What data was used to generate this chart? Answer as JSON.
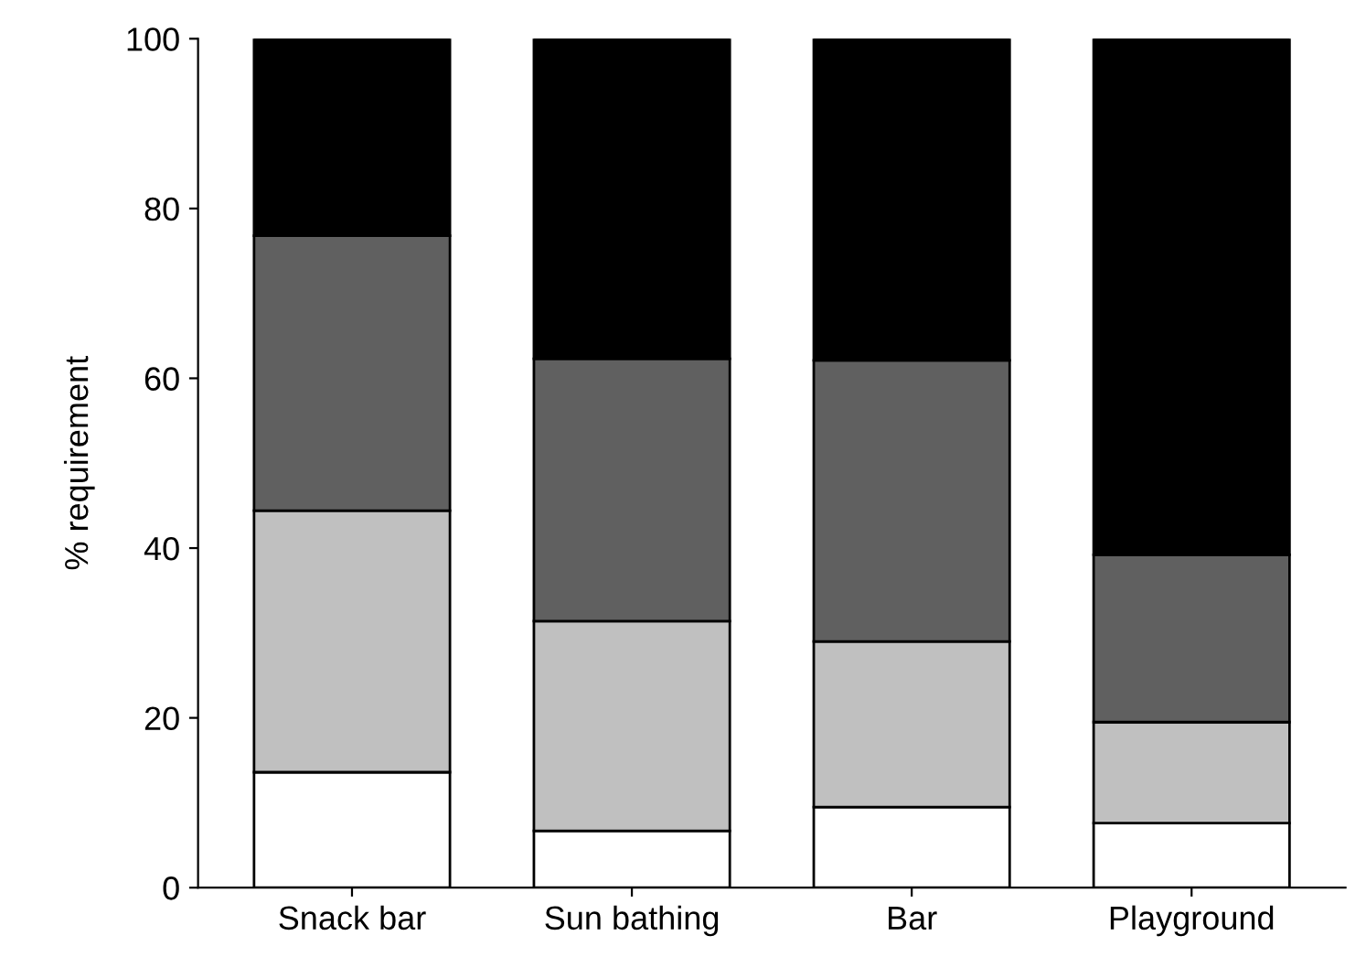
{
  "chart_data": {
    "type": "bar",
    "stacked": true,
    "ylabel": "% requirement",
    "categories": [
      "Snack bar",
      "Sun bathing",
      "Bar",
      "Playground"
    ],
    "series": [
      {
        "color": "#ffffff",
        "values": [
          13.6,
          6.7,
          9.5,
          7.6
        ]
      },
      {
        "color": "#c0c0c0",
        "values": [
          30.8,
          24.7,
          19.5,
          11.9
        ]
      },
      {
        "color": "#606060",
        "values": [
          32.4,
          30.9,
          33.1,
          19.7
        ]
      },
      {
        "color": "#000000",
        "values": [
          23.2,
          37.7,
          37.9,
          60.8
        ]
      }
    ],
    "ylim": [
      0,
      100
    ],
    "yticks": [
      0,
      20,
      40,
      60,
      80,
      100
    ],
    "grid": false,
    "legend": false
  }
}
